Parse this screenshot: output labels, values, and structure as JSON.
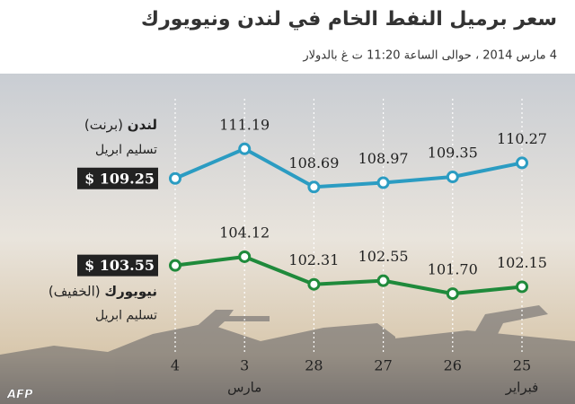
{
  "chart_data": {
    "type": "line",
    "title": "سعر برميل النفط الخام في لندن ونيويورك",
    "subtitle": "4 مارس 2014 ، حوالى الساعة 11:20 ت غ  بالدولار",
    "source": "AFP",
    "categories": [
      "4",
      "3",
      "28",
      "27",
      "26",
      "25"
    ],
    "category_sublabels": [
      null,
      "مارس",
      null,
      null,
      null,
      "فبراير"
    ],
    "ylim": [
      100,
      113
    ],
    "series": [
      {
        "name": "لندن",
        "name_note": "(برنت)",
        "delivery": "تسليم ابريل",
        "color": "#2b9cc2",
        "values": [
          109.25,
          111.19,
          108.69,
          108.97,
          109.35,
          110.27
        ],
        "value_labels": [
          "$ 109.25",
          "111.19",
          "108.69",
          "108.97",
          "109.35",
          "110.27"
        ]
      },
      {
        "name": "نيويورك",
        "name_note": "(الخفيف)",
        "delivery": "تسليم ابريل",
        "color": "#1f8a3b",
        "values": [
          103.55,
          104.12,
          102.31,
          102.55,
          101.7,
          102.15
        ],
        "value_labels": [
          "$ 103.55",
          "104.12",
          "102.31",
          "102.55",
          "101.70",
          "102.15"
        ]
      }
    ]
  }
}
